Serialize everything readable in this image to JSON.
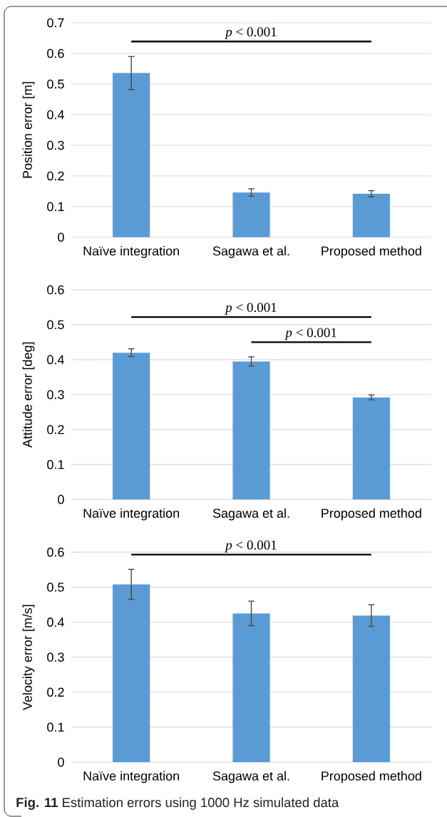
{
  "chart_data": [
    {
      "type": "bar",
      "ylabel": "Position error [m]",
      "categories": [
        "Naïve integration",
        "Sagawa et al.",
        "Proposed method"
      ],
      "values": [
        0.536,
        0.146,
        0.142
      ],
      "errors": [
        0.054,
        0.012,
        0.01
      ],
      "color": "#5b9bd5",
      "ylim": [
        0,
        0.7
      ],
      "yticks": [
        0,
        0.1,
        0.2,
        0.3,
        0.4,
        0.5,
        0.6,
        0.7
      ],
      "grid": "y",
      "annotations": [
        "*p* < 0.001"
      ]
    },
    {
      "type": "bar",
      "ylabel": "Attitude error [deg]",
      "categories": [
        "Naïve integration",
        "Sagawa et al.",
        "Proposed method"
      ],
      "values": [
        0.42,
        0.395,
        0.292
      ],
      "errors": [
        0.011,
        0.013,
        0.007
      ],
      "color": "#5b9bd5",
      "ylim": [
        0,
        0.6
      ],
      "yticks": [
        0,
        0.1,
        0.2,
        0.3,
        0.4,
        0.5,
        0.6
      ],
      "grid": "y",
      "annotations": [
        "*p* < 0.001",
        "*p* < 0.001"
      ]
    },
    {
      "type": "bar",
      "ylabel": "Velocity error [m/s]",
      "categories": [
        "Naïve integration",
        "Sagawa et al.",
        "Proposed method"
      ],
      "values": [
        0.508,
        0.425,
        0.419
      ],
      "errors": [
        0.043,
        0.035,
        0.031
      ],
      "color": "#5b9bd5",
      "ylim": [
        0,
        0.6
      ],
      "yticks": [
        0,
        0.1,
        0.2,
        0.3,
        0.4,
        0.5,
        0.6
      ],
      "grid": "y",
      "annotations": [
        "*p* < 0.001"
      ]
    },
    {
      "type": "other",
      "annotations": [
        "**Fig. 11** Estimation errors using 1000 Hz simulated data"
      ]
    }
  ]
}
